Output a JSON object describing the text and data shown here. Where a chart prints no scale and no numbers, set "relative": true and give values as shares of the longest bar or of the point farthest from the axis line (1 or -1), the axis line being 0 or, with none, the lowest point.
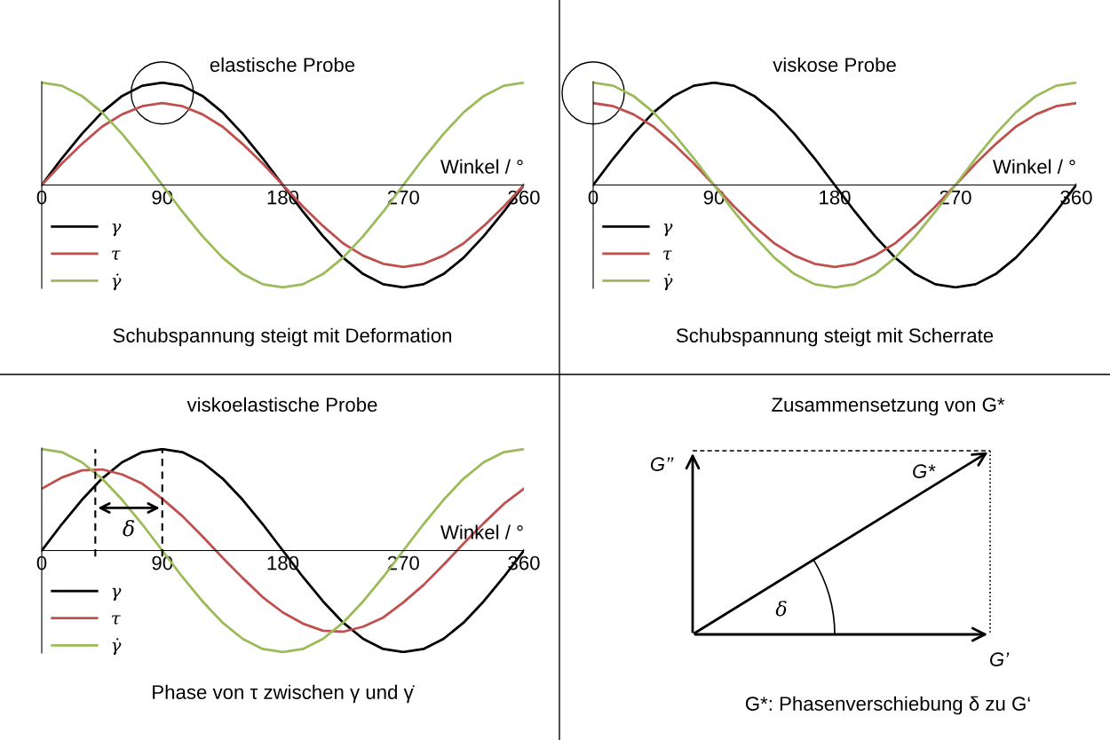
{
  "chart_data": [
    {
      "type": "line",
      "title": "elastische Probe",
      "xlabel": "Winkel / °",
      "relative": true,
      "xlim": [
        0,
        360
      ],
      "xticks": [
        0,
        90,
        180,
        270,
        360
      ],
      "legend": "bottom left",
      "grid": false,
      "x": [
        0,
        15,
        30,
        45,
        60,
        75,
        90,
        105,
        120,
        135,
        150,
        165,
        180,
        195,
        210,
        225,
        240,
        255,
        270,
        285,
        300,
        315,
        330,
        345,
        360
      ],
      "series": [
        {
          "name": "γ",
          "color": "#000000",
          "values": [
            0,
            0.26,
            0.5,
            0.71,
            0.87,
            0.97,
            1,
            0.97,
            0.87,
            0.71,
            0.5,
            0.26,
            0,
            -0.26,
            -0.5,
            -0.71,
            -0.87,
            -0.97,
            -1,
            -0.97,
            -0.87,
            -0.71,
            -0.5,
            -0.26,
            0
          ]
        },
        {
          "name": "τ",
          "color": "#c0504d",
          "values": [
            0,
            0.21,
            0.4,
            0.57,
            0.69,
            0.77,
            0.8,
            0.77,
            0.69,
            0.57,
            0.4,
            0.21,
            0,
            -0.21,
            -0.4,
            -0.57,
            -0.69,
            -0.77,
            -0.8,
            -0.77,
            -0.69,
            -0.57,
            -0.4,
            -0.21,
            0
          ]
        },
        {
          "name": "γ̇",
          "color": "#9bbb59",
          "values": [
            1,
            0.97,
            0.87,
            0.71,
            0.5,
            0.26,
            0,
            -0.26,
            -0.5,
            -0.71,
            -0.87,
            -0.97,
            -1,
            -0.97,
            -0.87,
            -0.71,
            -0.5,
            -0.26,
            0,
            0.26,
            0.5,
            0.71,
            0.87,
            0.97,
            1
          ]
        }
      ],
      "annotations": [
        "Schubspannung steigt mit Deformation"
      ]
    },
    {
      "type": "line",
      "title": "viskose Probe",
      "xlabel": "Winkel / °",
      "relative": true,
      "xlim": [
        0,
        360
      ],
      "xticks": [
        0,
        90,
        180,
        270,
        360
      ],
      "legend": "bottom left",
      "grid": false,
      "x": [
        0,
        15,
        30,
        45,
        60,
        75,
        90,
        105,
        120,
        135,
        150,
        165,
        180,
        195,
        210,
        225,
        240,
        255,
        270,
        285,
        300,
        315,
        330,
        345,
        360
      ],
      "series": [
        {
          "name": "γ",
          "color": "#000000",
          "values": [
            0,
            0.26,
            0.5,
            0.71,
            0.87,
            0.97,
            1,
            0.97,
            0.87,
            0.71,
            0.5,
            0.26,
            0,
            -0.26,
            -0.5,
            -0.71,
            -0.87,
            -0.97,
            -1,
            -0.97,
            -0.87,
            -0.71,
            -0.5,
            -0.26,
            0
          ]
        },
        {
          "name": "τ",
          "color": "#c0504d",
          "values": [
            0.8,
            0.77,
            0.69,
            0.57,
            0.4,
            0.21,
            0,
            -0.21,
            -0.4,
            -0.57,
            -0.69,
            -0.77,
            -0.8,
            -0.77,
            -0.69,
            -0.57,
            -0.4,
            -0.21,
            0,
            0.21,
            0.4,
            0.57,
            0.69,
            0.77,
            0.8
          ]
        },
        {
          "name": "γ̇",
          "color": "#9bbb59",
          "values": [
            1,
            0.97,
            0.87,
            0.71,
            0.5,
            0.26,
            0,
            -0.26,
            -0.5,
            -0.71,
            -0.87,
            -0.97,
            -1,
            -0.97,
            -0.87,
            -0.71,
            -0.5,
            -0.26,
            0,
            0.26,
            0.5,
            0.71,
            0.87,
            0.97,
            1
          ]
        }
      ],
      "annotations": [
        "Schubspannung steigt mit Scherrate"
      ]
    },
    {
      "type": "line",
      "title": "viskoelastische Probe",
      "xlabel": "Winkel / °",
      "relative": true,
      "xlim": [
        0,
        360
      ],
      "xticks": [
        0,
        90,
        180,
        270,
        360
      ],
      "legend": "bottom left",
      "grid": false,
      "x": [
        0,
        15,
        30,
        45,
        60,
        75,
        90,
        105,
        120,
        135,
        150,
        165,
        180,
        195,
        210,
        225,
        240,
        255,
        270,
        285,
        300,
        315,
        330,
        345,
        360
      ],
      "series": [
        {
          "name": "γ",
          "color": "#000000",
          "values": [
            0,
            0.26,
            0.5,
            0.71,
            0.87,
            0.97,
            1,
            0.97,
            0.87,
            0.71,
            0.5,
            0.26,
            0,
            -0.26,
            -0.5,
            -0.71,
            -0.87,
            -0.97,
            -1,
            -0.97,
            -0.87,
            -0.71,
            -0.5,
            -0.26,
            0
          ]
        },
        {
          "name": "τ",
          "color": "#c0504d",
          "values": [
            0.61,
            0.72,
            0.79,
            0.8,
            0.75,
            0.66,
            0.51,
            0.34,
            0.14,
            -0.07,
            -0.27,
            -0.46,
            -0.61,
            -0.72,
            -0.79,
            -0.8,
            -0.75,
            -0.66,
            -0.51,
            -0.34,
            -0.14,
            0.07,
            0.27,
            0.46,
            0.61
          ]
        },
        {
          "name": "γ̇",
          "color": "#9bbb59",
          "values": [
            1,
            0.97,
            0.87,
            0.71,
            0.5,
            0.26,
            0,
            -0.26,
            -0.5,
            -0.71,
            -0.87,
            -0.97,
            -1,
            -0.97,
            -0.87,
            -0.71,
            -0.5,
            -0.26,
            0,
            0.26,
            0.5,
            0.71,
            0.87,
            0.97,
            1
          ]
        }
      ],
      "ref_lines": [
        {
          "axis": "x",
          "value": 40,
          "color": "#000000",
          "line_style": "dashed"
        },
        {
          "axis": "x",
          "value": 90,
          "color": "#000000",
          "line_style": "dashed"
        }
      ],
      "annotations": [
        "δ",
        "Phase von τ zwischen γ und γ̇"
      ]
    },
    {
      "type": "other",
      "title": "Zusammensetzung von G*",
      "annotations": [
        "G’’",
        "G*",
        "G’",
        "δ",
        "G*: Phasenverschiebung δ zu G‘"
      ]
    }
  ]
}
